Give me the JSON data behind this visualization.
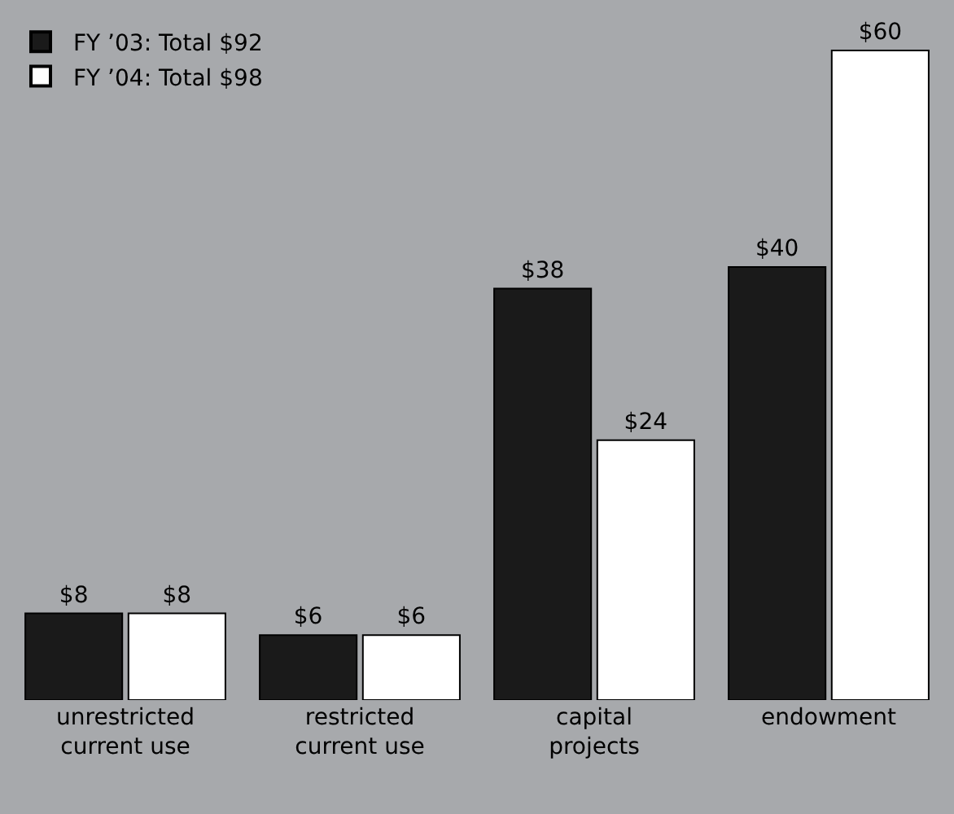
{
  "chart_data": {
    "type": "bar",
    "categories": [
      "unrestricted\ncurrent use",
      "restricted\ncurrent use",
      "capital\nprojects",
      "endowment"
    ],
    "series": [
      {
        "name": "FY ’03: Total $92",
        "color": "#1a1a1a",
        "values": [
          8,
          6,
          38,
          40
        ],
        "value_labels": [
          "$8",
          "$6",
          "$38",
          "$40"
        ]
      },
      {
        "name": "FY ’04: Total $98",
        "color": "#ffffff",
        "values": [
          8,
          6,
          24,
          60
        ],
        "value_labels": [
          "$8",
          "$6",
          "$24",
          "$60"
        ]
      }
    ],
    "legend": "top left",
    "grid": false
  }
}
